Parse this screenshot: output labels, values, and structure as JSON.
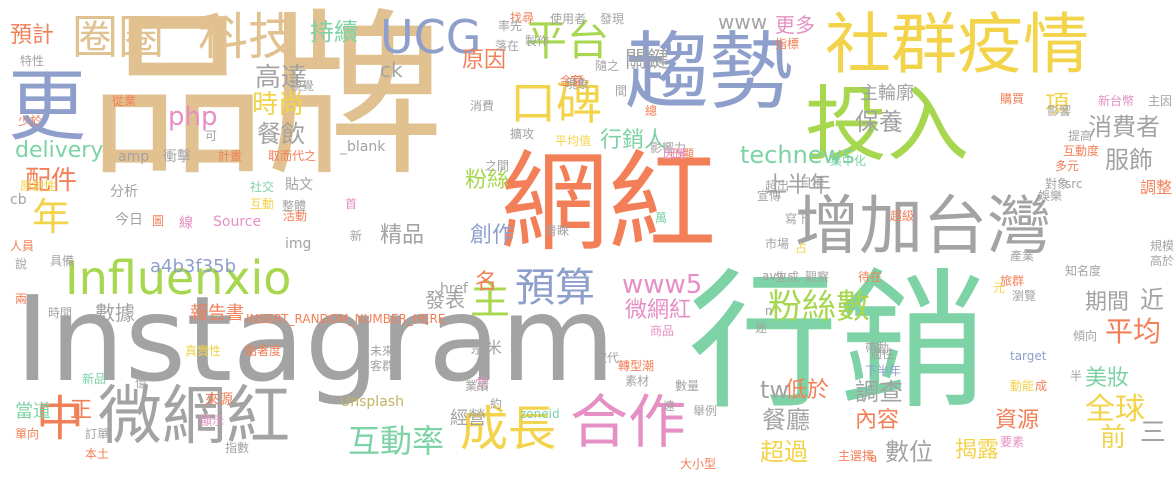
{
  "words": [
    "品牌",
    "行銷",
    "Instagram",
    "網紅",
    "投入",
    "趨勢",
    "社群疫情",
    "增加台灣",
    "更",
    "微網紅",
    "合作",
    "科技",
    "圈圈",
    "UCG",
    "平台",
    "口碑",
    "預算",
    "成長",
    "中",
    "Influenxio",
    "主",
    "粉絲數",
    "年",
    "互動率",
    "technews",
    "delivery",
    "配件",
    "www5",
    "微網紅",
    "php",
    "平均",
    "全球",
    "行銷人",
    "創作",
    "精品",
    "時尚",
    "高達",
    "持續",
    "餐飲",
    "保養",
    "主輪廓",
    "項",
    "消費者",
    "服飾",
    "上半年",
    "粉絲",
    "關鍵",
    "原因",
    "www",
    "更多",
    "預計",
    "a4b3f35b",
    "數據",
    "報告書",
    "INSERT_RANDOM_NUMBER_HERE",
    "低於",
    "調查",
    "餐廳",
    "數位",
    "內容",
    "超過",
    "揭露",
    "資源",
    "前",
    "三",
    "美妝",
    "近",
    "期間",
    "tw",
    "名",
    "經營",
    "正",
    "當道",
    "來源",
    "Unsplash",
    "zoneid",
    "href",
    "amp",
    "cb",
    "Source",
    "今日",
    "從業",
    "少於",
    "特性",
    "ck",
    "發表",
    "img",
    "貼文",
    "互動",
    "社交",
    "活動",
    "線",
    "分析",
    "衝擊",
    "取而代之",
    "計畫",
    "整體",
    "首",
    "_blank",
    "視覺",
    "可",
    "新品",
    "億",
    "指數",
    "顯示",
    "訂單",
    "單向",
    "本土",
    "真實性",
    "點著度",
    "未來",
    "客群",
    "奈米",
    "常",
    "約",
    "業績",
    "下半年",
    "目標",
    "素材",
    "取代",
    "數量",
    "舉例",
    "受",
    "過往",
    "帶動",
    "target",
    "傾向",
    "動能",
    "半",
    "成",
    "新台幣",
    "主因",
    "影響",
    "購買",
    "提高",
    "互動度",
    "多元",
    "對象",
    "src",
    "娛樂",
    "規模",
    "高於",
    "知名度",
    "元",
    "旅群",
    "瀏覽",
    "產業",
    "待在",
    "觀察",
    "生成",
    "avw",
    "市場",
    "占",
    "寫下",
    "萬",
    "宣傳",
    "青睞",
    "集中化",
    "超出",
    "製作",
    "落在",
    "找尋",
    "率先",
    "使用者",
    "發現",
    "指標",
    "間",
    "隨之",
    "凸顯",
    "金額",
    "家",
    "現象",
    "總",
    "擴攻",
    "平均值",
    "影響力",
    "因應",
    "要素",
    "a",
    "主選擇",
    "大小型",
    "遠",
    "轉型潮",
    "途",
    "兩",
    "說",
    "人員",
    "具備",
    "原創性",
    "時間",
    "調整",
    "消費",
    "新",
    "圖",
    "n",
    "商品",
    "之間",
    "超級",
    "帳號",
    "數位"
  ],
  "colors": {
    "tan": "#e0c18f",
    "orange": "#f27f57",
    "gray": "#a3a3a3",
    "green": "#7dd2a6",
    "lime": "#a6d74f",
    "yellow": "#f2d34a",
    "blue": "#8e9fcb",
    "pink": "#e58fc4",
    "olive": "#c2b260"
  }
}
